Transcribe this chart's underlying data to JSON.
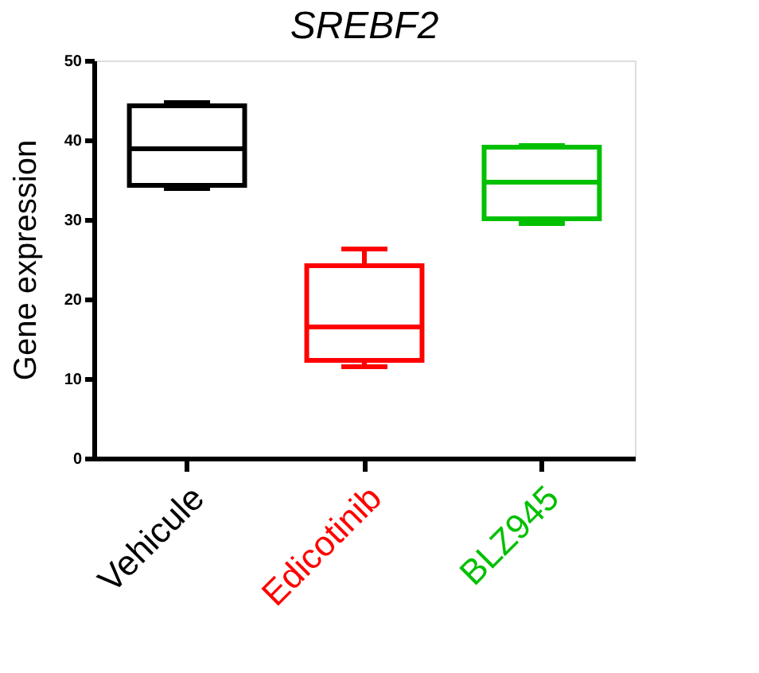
{
  "chart_data": {
    "type": "box",
    "title": "SREBF2",
    "ylabel": "Gene expression",
    "categories": [
      "Vehicule",
      "Edicotinib",
      "BLZ945"
    ],
    "boxes": [
      {
        "low": 33.9,
        "q1": 34.3,
        "median": 38.9,
        "q3": 44.3,
        "high": 44.7
      },
      {
        "low": 11.5,
        "q1": 12.3,
        "median": 16.5,
        "q3": 24.2,
        "high": 26.3
      },
      {
        "low": 29.5,
        "q1": 30.1,
        "median": 34.7,
        "q3": 39.1,
        "high": 39.3
      }
    ],
    "colors": [
      "#000000",
      "#ff0000",
      "#00c000"
    ],
    "ylim": [
      0,
      50
    ],
    "yticks": [
      0,
      10,
      20,
      30,
      40,
      50
    ],
    "grid": false,
    "legend": false
  }
}
